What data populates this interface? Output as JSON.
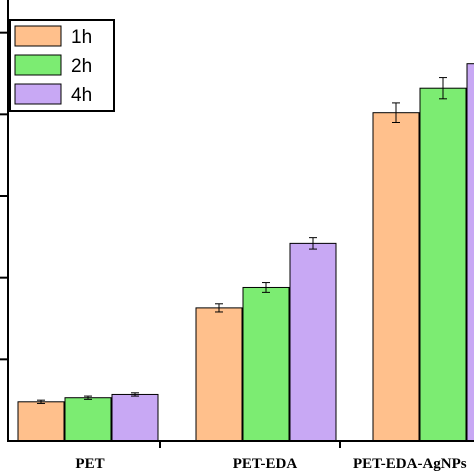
{
  "chart_data": {
    "type": "bar",
    "title": "",
    "xlabel": "",
    "ylabel": "",
    "ylim": [
      0,
      5.4
    ],
    "grid": false,
    "legend_position": "top-left",
    "categories": [
      "PET",
      "PET-EDA",
      "PET-EDA-AgNPs"
    ],
    "series": [
      {
        "name": "1h",
        "color": "#FFC08C",
        "values": [
          0.48,
          1.63,
          4.02
        ],
        "errors": [
          0.02,
          0.05,
          0.12
        ]
      },
      {
        "name": "2h",
        "color": "#7CEC72",
        "values": [
          0.53,
          1.88,
          4.32
        ],
        "errors": [
          0.02,
          0.06,
          0.13
        ]
      },
      {
        "name": "4h",
        "color": "#C8A8F4",
        "values": [
          0.57,
          2.42,
          4.62
        ],
        "errors": [
          0.02,
          0.07,
          0.15
        ]
      }
    ]
  }
}
